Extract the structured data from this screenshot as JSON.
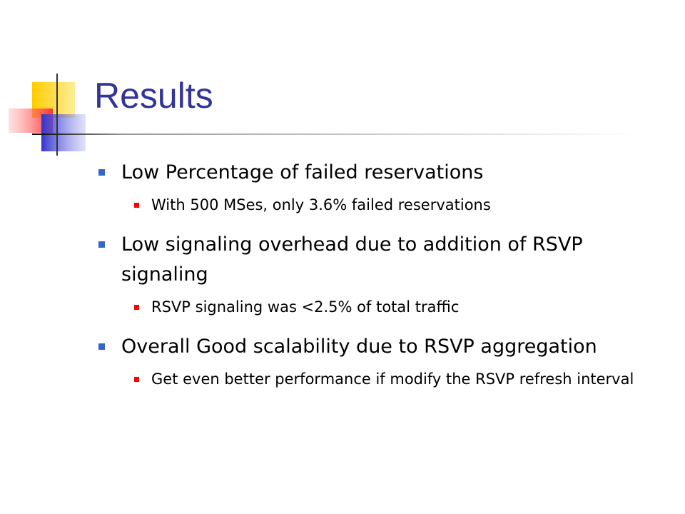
{
  "title": "Results",
  "bullets": [
    {
      "text": "Low Percentage of failed reservations",
      "sub": [
        "With 500 MSes, only 3.6% failed reservations"
      ]
    },
    {
      "text": "Low signaling overhead due to addition of RSVP signaling",
      "sub": [
        "RSVP signaling was <2.5% of total traffic"
      ]
    },
    {
      "text": "Overall Good scalability due to RSVP aggregation",
      "sub": [
        "Get even better performance if modify the RSVP refresh interval"
      ]
    }
  ]
}
